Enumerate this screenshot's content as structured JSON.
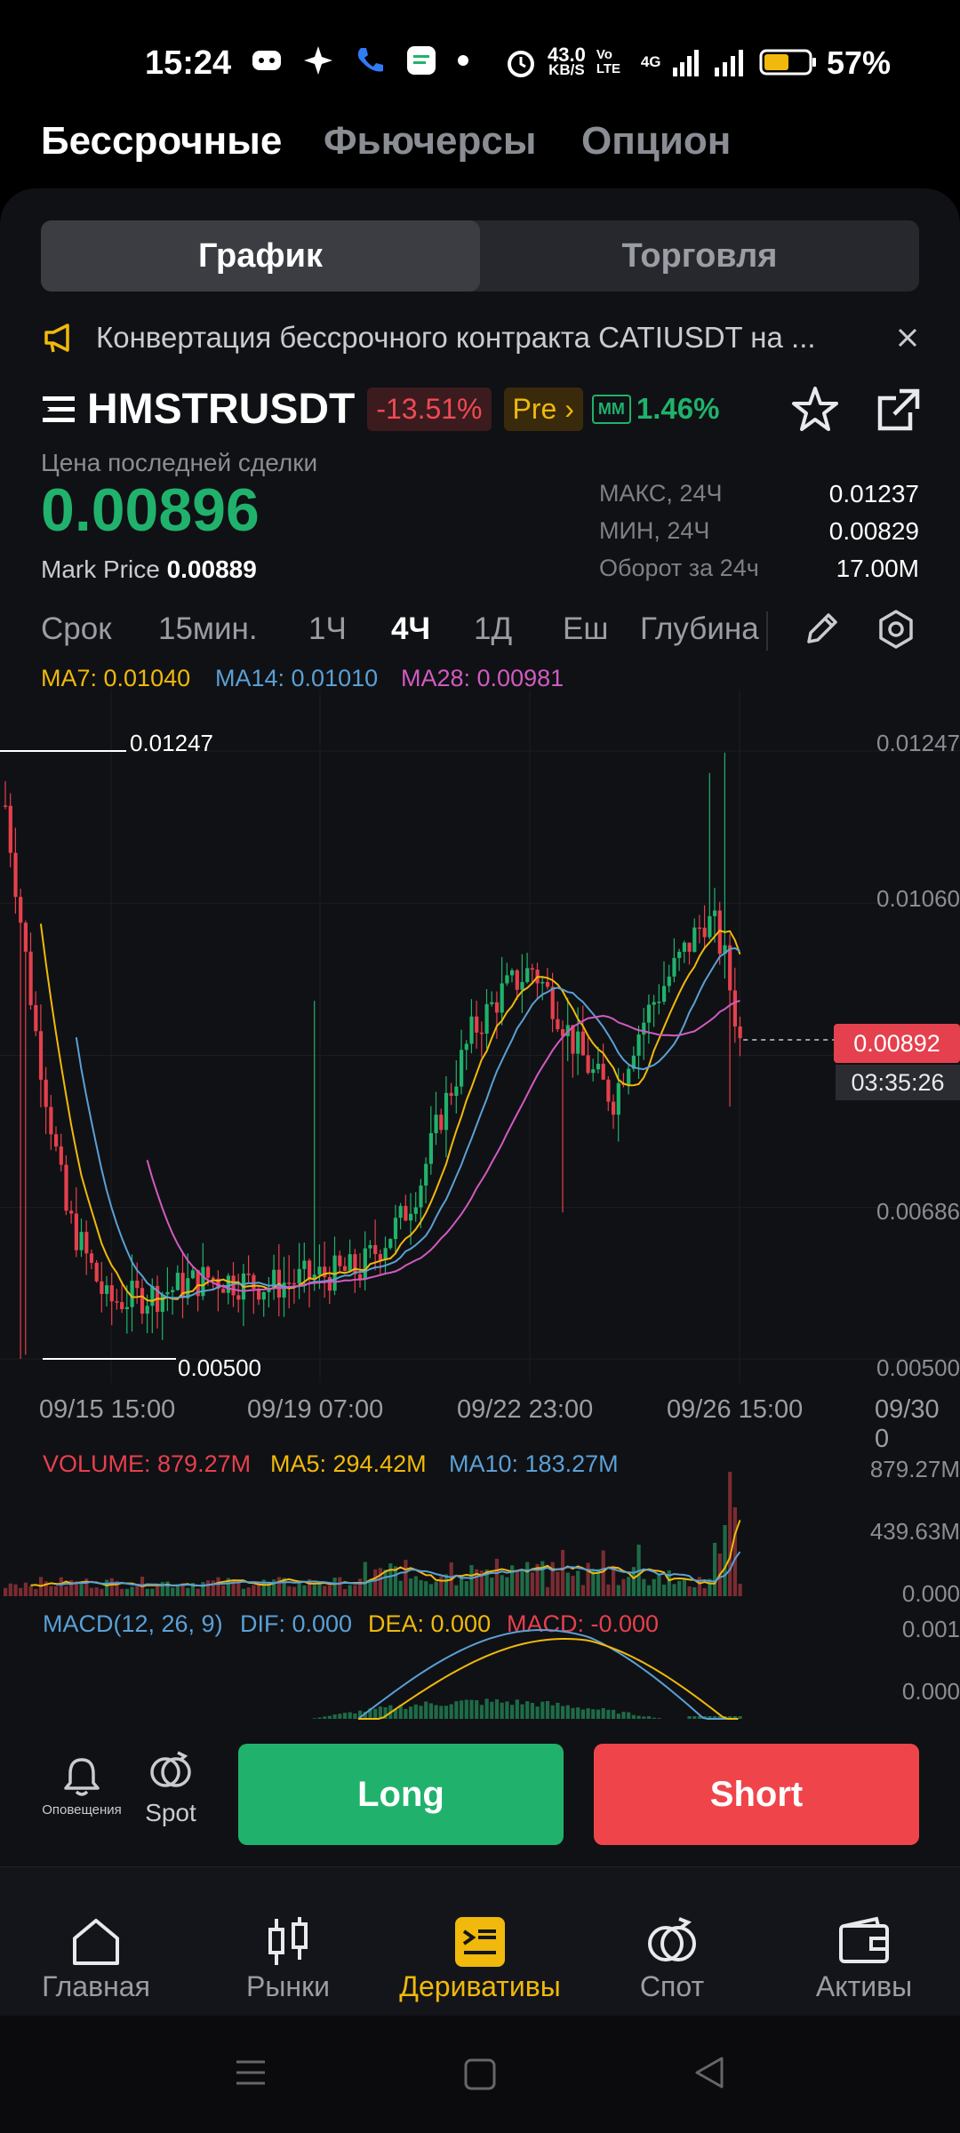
{
  "status_bar": {
    "time": "15:24",
    "net_speed_value": "43.0",
    "net_speed_unit": "KB/S",
    "volte": "Vo LTE",
    "network": "4G",
    "battery_pct": "57%",
    "battery_level": 0.57
  },
  "product_tabs": [
    {
      "label": "Бессрочные",
      "active": true
    },
    {
      "label": "Фьючерсы",
      "active": false
    },
    {
      "label": "Опцион",
      "active": false
    }
  ],
  "view_switch": {
    "chart": "График",
    "trade": "Торговля",
    "active": "chart"
  },
  "notice": {
    "text": "Конвертация бессрочного контракта CATIUSDT на ..."
  },
  "symbol": {
    "name": "HMSTRUSDT",
    "change": "-13.51%",
    "pre_label": "Pre",
    "mm_label": "MM",
    "mm_value": "1.46%"
  },
  "price": {
    "label": "Цена последней сделки",
    "last": "0.00896",
    "mark_label": "Mark Price",
    "mark_value": "0.00889"
  },
  "stats": [
    {
      "label": "МАКС, 24Ч",
      "value": "0.01237"
    },
    {
      "label": "МИН, 24Ч",
      "value": "0.00829"
    },
    {
      "label": "Оборот за 24ч",
      "value": "17.00M"
    }
  ],
  "timeframes": [
    {
      "label": "Срок",
      "active": false
    },
    {
      "label": "15мин.",
      "active": false
    },
    {
      "label": "1Ч",
      "active": false
    },
    {
      "label": "4Ч",
      "active": true
    },
    {
      "label": "1Д",
      "active": false
    },
    {
      "label": "Еш",
      "active": false
    },
    {
      "label": "Глубина",
      "active": false
    }
  ],
  "ma_legend": {
    "ma7": "MA7: 0.01040",
    "ma14": "MA14: 0.01010",
    "ma28": "MA28: 0.00981"
  },
  "chart_data": {
    "type": "candlestick",
    "y_ticks": [
      "0.01247",
      "0.01060",
      "0.00686",
      "0.00500"
    ],
    "y_range": [
      0.005,
      0.01247
    ],
    "x_ticks": [
      "09/15 15:00",
      "09/19 07:00",
      "09/22 23:00",
      "09/26 15:00",
      "09/30 0"
    ],
    "high_label": "0.01247",
    "low_label": "0.00500",
    "current_price": "0.00892",
    "countdown": "03:35:26",
    "colors": {
      "up": "#20b26c",
      "down": "#e5404d",
      "ma7": "#f0b90b",
      "ma14": "#5aa0d6",
      "ma28": "#d05bc1"
    }
  },
  "volume": {
    "legend": "VOLUME: 879.27M",
    "ma5": "MA5: 294.42M",
    "ma10": "MA10: 183.27M",
    "axis": [
      "879.27M",
      "439.63M",
      "0.000"
    ]
  },
  "macd": {
    "title": "MACD(12, 26, 9)",
    "dif": "DIF: 0.000",
    "dea": "DEA: 0.000",
    "macd": "MACD: -0.000",
    "axis": [
      "0.001",
      "0.000"
    ]
  },
  "actions": {
    "alerts_label": "Оповещения",
    "spot_label": "Spot",
    "long": "Long",
    "short": "Short"
  },
  "bottom_nav": [
    {
      "label": "Главная",
      "icon": "home-icon"
    },
    {
      "label": "Рынки",
      "icon": "markets-icon"
    },
    {
      "label": "Деривативы",
      "icon": "derivatives-icon",
      "active": true
    },
    {
      "label": "Спот",
      "icon": "spot-icon"
    },
    {
      "label": "Активы",
      "icon": "wallet-icon"
    }
  ]
}
